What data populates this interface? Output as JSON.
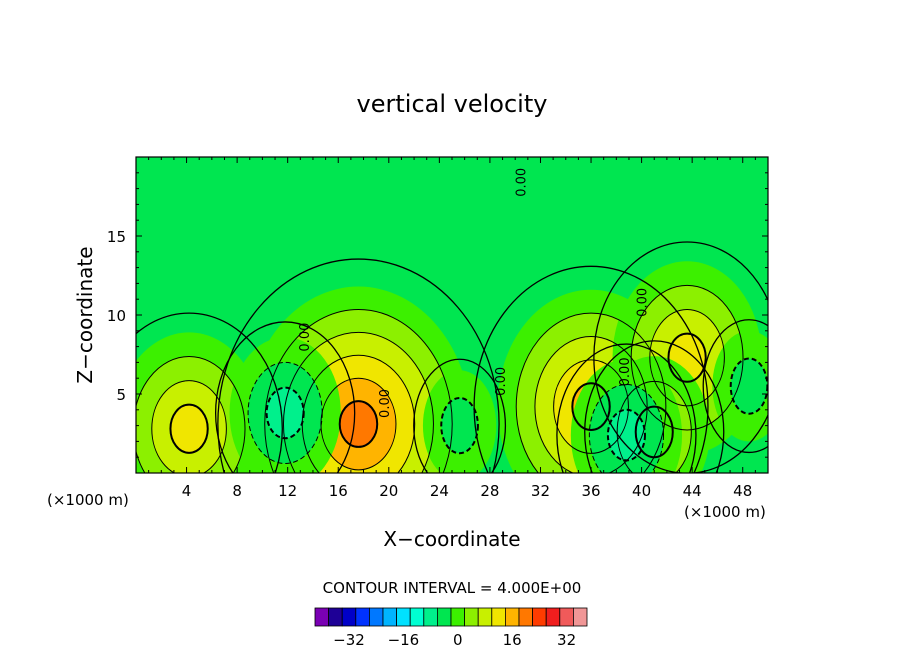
{
  "chart_data": {
    "type": "heatmap",
    "title": "vertical velocity",
    "xlabel": "X−coordinate",
    "ylabel": "Z−coordinate",
    "x_unit_left": "(×1000 m)",
    "x_unit_right": "(×1000 m)",
    "xlim": [
      0,
      50
    ],
    "ylim": [
      0,
      20
    ],
    "x_ticks": [
      4,
      8,
      12,
      16,
      20,
      24,
      28,
      32,
      36,
      40,
      44,
      48
    ],
    "x_ticklabels": [
      "4",
      "8",
      "12",
      "16",
      "20",
      "24",
      "28",
      "32",
      "36",
      "40",
      "44",
      "48"
    ],
    "y_ticks": [
      5,
      10,
      15
    ],
    "y_ticklabels": [
      "5",
      "10",
      "15"
    ],
    "contour_interval_text": "CONTOUR INTERVAL = 4.000E+00",
    "contour_interval": 4,
    "contour_labels": [
      {
        "text": "0.00",
        "x": 20.0,
        "z": 4.4
      },
      {
        "text": "0.00",
        "x": 13.7,
        "z": 8.6
      },
      {
        "text": "0.00",
        "x": 29.2,
        "z": 5.8
      },
      {
        "text": "0.00",
        "x": 30.8,
        "z": 18.4
      },
      {
        "text": "0.00",
        "x": 39.0,
        "z": 6.4
      },
      {
        "text": "0.00",
        "x": 40.4,
        "z": 10.8
      }
    ],
    "features": [
      {
        "sign": "positive",
        "x": 4.2,
        "z": 2.8,
        "max_level": 12
      },
      {
        "sign": "positive",
        "x": 17.6,
        "z": 3.1,
        "max_level": 20
      },
      {
        "sign": "positive",
        "x": 36.0,
        "z": 4.2,
        "max_level": 16
      },
      {
        "sign": "positive",
        "x": 43.6,
        "z": 7.3,
        "max_level": 12
      },
      {
        "sign": "positive",
        "x": 41.0,
        "z": 2.6,
        "max_level": 8
      },
      {
        "sign": "negative",
        "x": 11.8,
        "z": 3.8,
        "min_level": -8
      },
      {
        "sign": "negative",
        "x": 25.6,
        "z": 3.0,
        "min_level": -4
      },
      {
        "sign": "negative",
        "x": 38.8,
        "z": 2.4,
        "min_level": -8
      },
      {
        "sign": "negative",
        "x": 48.5,
        "z": 5.5,
        "min_level": -4
      }
    ],
    "colorbar": {
      "colors": [
        "#7a00b4",
        "#1e0096",
        "#0000c8",
        "#0032ff",
        "#0078ff",
        "#00b4ff",
        "#00e1ff",
        "#00ffd2",
        "#00f08c",
        "#00e650",
        "#3cf000",
        "#8cf000",
        "#c8f000",
        "#f0e600",
        "#ffb400",
        "#ff7800",
        "#ff3c00",
        "#f01e1e",
        "#f05a5a",
        "#f09696"
      ],
      "tick_labels": [
        "−32",
        "−16",
        "0",
        "16",
        "32"
      ]
    }
  }
}
